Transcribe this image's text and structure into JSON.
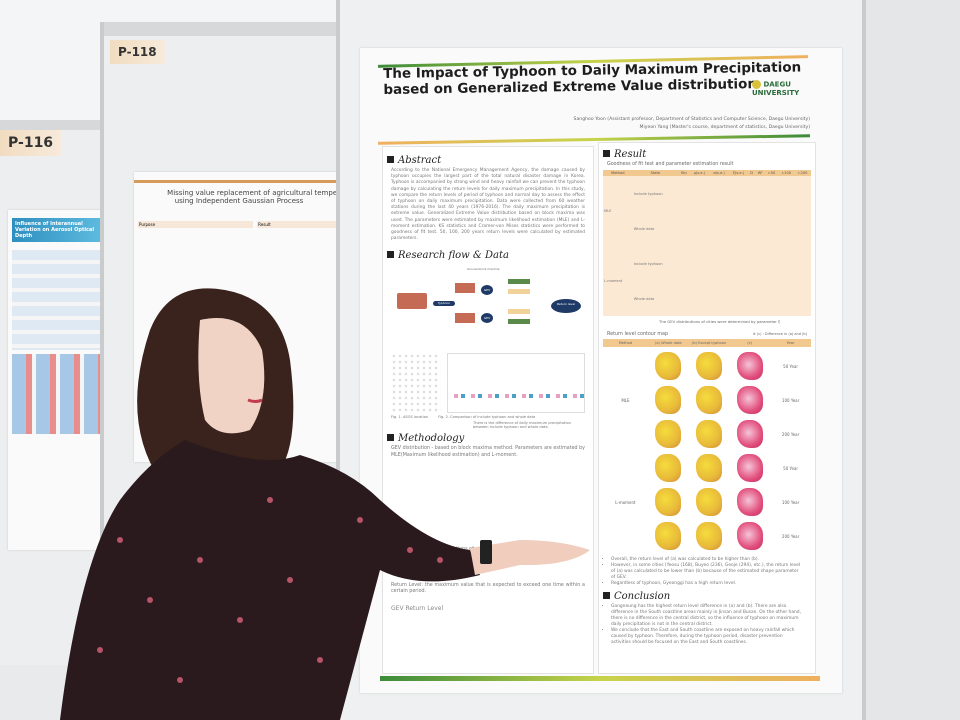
{
  "left_board": {
    "tag": "P-116",
    "poster_title": "Influence of Interannual Variation on Aerosol Optical Depth"
  },
  "middle_board": {
    "tag": "P-118",
    "poster_title_line1": "Missing value replacement of agricultural temper",
    "poster_title_line2": "using Independent Gaussian Process",
    "section_purpose": "Purpose",
    "section_result": "Result"
  },
  "poster": {
    "title_line1": "The Impact of Typhoon to Daily Maximum Precipitation",
    "title_line2": "based on Generalized Extreme Value distribution",
    "logo": "DAEGU UNIVERSITY",
    "author1": "Sanghoo Yoon (Assistant professor, Department of Statistics and Computer Science, Daegu University)",
    "author2": "Miyeon Yang (Master's course, department of statistics, Daegu University)",
    "abstract": {
      "heading": "Abstract",
      "text": "According to the National Emergency Management Agency, the damage caused by typhoon occupies the largest part of the total natural disaster damage in Korea. Typhoon is accompanied by strong wind and heavy rainfall we can prevent the typhoon damage by calculating the return levels for daily maximum precipitation. In this study, we compare the return levels of period of typhoon and normal day to assess the effect of typhoon on daily maximum precipitation. Data were collected from 60 weather stations during the last 40 years (1976-2016). The daily maximum precipitation is extreme value. Generalized Extreme Value distribution based on block maxima was used. The parameters were estimated by maximum likelihood estimation (MLE) and L-moment estimation. KS statistics and Cramer-von Mises statistics were performed to goodness of fit test. 50, 100, 200 years return levels were calculated by estimated parameters."
    },
    "research": {
      "heading": "Research flow & Data",
      "block": "Annual block maxima",
      "typhoon": "Typhoon",
      "gev": "GEV",
      "return": "Return level",
      "fig1": "Fig. 1. ASOS location",
      "fig2": "Fig. 2. Comparison of include typhoon and whole data",
      "note": "There is the difference of daily maximum precipitation between include typhoon and whole data."
    },
    "method": {
      "heading": "Methodology",
      "gev": "GEV distribution - based on block maxima method. Parameters are estimated by MLE(Maximum likelihood estimation) and L-moment.",
      "lmoment": "L-moment - linear combinations of order statistics",
      "return": "Return Level: the maximum value that is expected to exceed one time within a certain period.",
      "gev_return": "GEV Return Level"
    },
    "result": {
      "heading": "Result",
      "gof": "Goodness of fit test and parameter estimation result",
      "columns": [
        "Method",
        "State",
        "Stn",
        "μ(s.e.)",
        "σ(s.e.)",
        "ξ(s.e.)",
        "D",
        "W²",
        "r.50",
        "r.100",
        "r.200"
      ],
      "methods": [
        "MLE",
        "L-moment"
      ],
      "states": [
        "Include typhoon",
        "Whole data"
      ],
      "note": "The GEV distributions of cities were determined by parameter ξ",
      "contour": "Return level contour map",
      "contour_note": "※ (c) : Difference in (a) and (b)",
      "contour_cols": [
        "Method",
        "(a) Whole data",
        "(b) Except typhoon",
        "(c)",
        "Year"
      ],
      "years": [
        "50 Year",
        "100 Year",
        "200 Year"
      ],
      "bullets": [
        "Overall, the return level of (a) was calculated to be higher than (b).",
        "However, in some cities (Yeosu (168), Buyeo (236), Geoje (294), etc.), the return level of (a) was calculated to be lower than (b) because of the estimated shape parameter of GEV.",
        "Regardless of typhoon, Gyeonggi has a high return level."
      ]
    },
    "conclusion": {
      "heading": "Conclusion",
      "bullets": [
        "Gangneung has the highest return level difference in (a) and (b). There are also difference in the South coastline areas mainly in Jinsan and Busan. On the other hand, there is no difference in the central district, so the influence of typhoon on maximum daily precipitation is not in the central district.",
        "We conclude that the East and South coastline are exposed on heavy rainfall which caused by typhoon. Therefore, during the typhoon period, disaster prevention activities should be focused on the East and South coastlines."
      ]
    }
  },
  "colors": {
    "title_bar_green": "#3c8b3a",
    "table_orange": "#f0c890",
    "dress": "#2a1a1e"
  }
}
